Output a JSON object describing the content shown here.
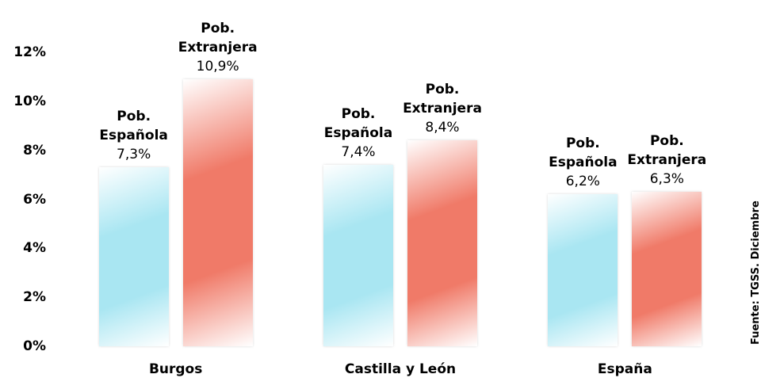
{
  "chart_data": {
    "type": "bar",
    "categories": [
      "Burgos",
      "Castilla y León",
      "España"
    ],
    "series": [
      {
        "name": "Pob. Española",
        "color": "#a9e6f2",
        "values": [
          7.3,
          7.4,
          6.2
        ],
        "value_labels": [
          "7,3%",
          "7,4%",
          "6,2%"
        ]
      },
      {
        "name": "Pob. Extranjera",
        "color": "#f07a68",
        "values": [
          10.9,
          8.4,
          6.3
        ],
        "value_labels": [
          "10,9%",
          "8,4%",
          "6,3%"
        ]
      }
    ],
    "ylim": [
      0,
      12
    ],
    "yticks": [
      {
        "value": 0,
        "label": "0%"
      },
      {
        "value": 2,
        "label": "2%"
      },
      {
        "value": 4,
        "label": "4%"
      },
      {
        "value": 6,
        "label": "6%"
      },
      {
        "value": 8,
        "label": "8%"
      },
      {
        "value": 10,
        "label": "10%"
      },
      {
        "value": 12,
        "label": "12%"
      }
    ],
    "grid": false,
    "source": "Fuente: TGSS. Diciembre"
  }
}
